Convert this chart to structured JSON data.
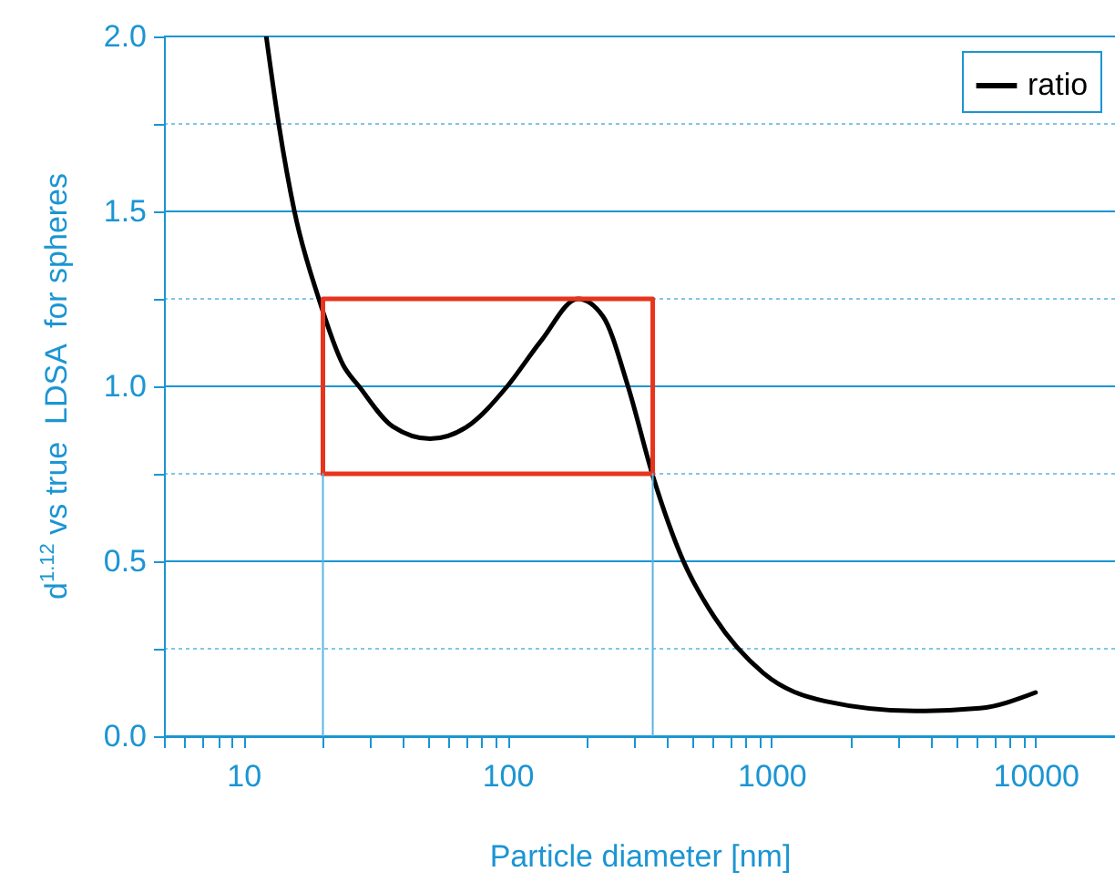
{
  "chart_data": {
    "type": "line",
    "xlabel": "Particle diameter [nm]",
    "ylabel": "d$^{1.12}$ vs true  LDSA  for spheres",
    "log": "x",
    "xlim": [
      5,
      20000
    ],
    "xticks": [
      {
        "value": 5,
        "label": null
      },
      {
        "value": 6,
        "label": null
      },
      {
        "value": 7,
        "label": null
      },
      {
        "value": 8,
        "label": null
      },
      {
        "value": 9,
        "label": null
      },
      10,
      {
        "value": 20,
        "label": null
      },
      {
        "value": 30,
        "label": null
      },
      {
        "value": 40,
        "label": null
      },
      {
        "value": 50,
        "label": null
      },
      {
        "value": 60,
        "label": null
      },
      {
        "value": 70,
        "label": null
      },
      {
        "value": 80,
        "label": null
      },
      {
        "value": 90,
        "label": null
      },
      100,
      {
        "value": 200,
        "label": null
      },
      {
        "value": 300,
        "label": null
      },
      {
        "value": 400,
        "label": null
      },
      {
        "value": 500,
        "label": null
      },
      {
        "value": 600,
        "label": null
      },
      {
        "value": 700,
        "label": null
      },
      {
        "value": 800,
        "label": null
      },
      {
        "value": 900,
        "label": null
      },
      1000,
      {
        "value": 2000,
        "label": null
      },
      {
        "value": 3000,
        "label": null
      },
      {
        "value": 4000,
        "label": null
      },
      {
        "value": 5000,
        "label": null
      },
      {
        "value": 6000,
        "label": null
      },
      {
        "value": 7000,
        "label": null
      },
      {
        "value": 8000,
        "label": null
      },
      {
        "value": 9000,
        "label": null
      },
      10000,
      {
        "value": 20000,
        "label": null
      }
    ],
    "ylim": [
      0,
      2
    ],
    "yticks": [
      {
        "value": 0,
        "label": "0.0"
      },
      {
        "value": 0.25,
        "label": null
      },
      {
        "value": 0.5,
        "label": "0.5"
      },
      {
        "value": 0.75,
        "label": null
      },
      {
        "value": 1,
        "label": "1.0"
      },
      {
        "value": 1.25,
        "label": null
      },
      {
        "value": 1.5,
        "label": "1.5"
      },
      {
        "value": 1.75,
        "label": null
      },
      {
        "value": 2,
        "label": "2.0"
      }
    ],
    "grid": "y",
    "legend": "top right",
    "line_style": "solid",
    "series": [
      {
        "name": "ratio",
        "color": "#000000",
        "x": [
          12.2,
          13.6,
          15.6,
          19.3,
          23.9,
          27.4,
          36.8,
          50.9,
          70.4,
          99.8,
          134,
          185,
          230,
          286,
          355,
          464,
          608,
          933,
          1600,
          3500,
          6150,
          10000
        ],
        "values": [
          2.0,
          1.75,
          1.5,
          1.25,
          1.06,
          1.0,
          0.885,
          0.85,
          0.885,
          1.0,
          1.13,
          1.25,
          1.2,
          1.0,
          0.745,
          0.5,
          0.34,
          0.18,
          0.1,
          0.072,
          0.08,
          0.125
        ]
      },
      {
        "color": "#e8341c",
        "x": [
          20,
          20,
          355,
          355
        ],
        "values": [
          0.75,
          1.25,
          1.25,
          0.75
        ]
      },
      {
        "color": "#e8341c",
        "x": [
          20,
          355
        ],
        "values": [
          0.75,
          0.75
        ]
      },
      {
        "color": "#5ab4e0",
        "x": [
          20,
          20
        ],
        "values": [
          0,
          0.75
        ]
      },
      {
        "color": "#5ab4e0",
        "x": [
          355,
          355
        ],
        "values": [
          0,
          0.75
        ]
      }
    ]
  }
}
